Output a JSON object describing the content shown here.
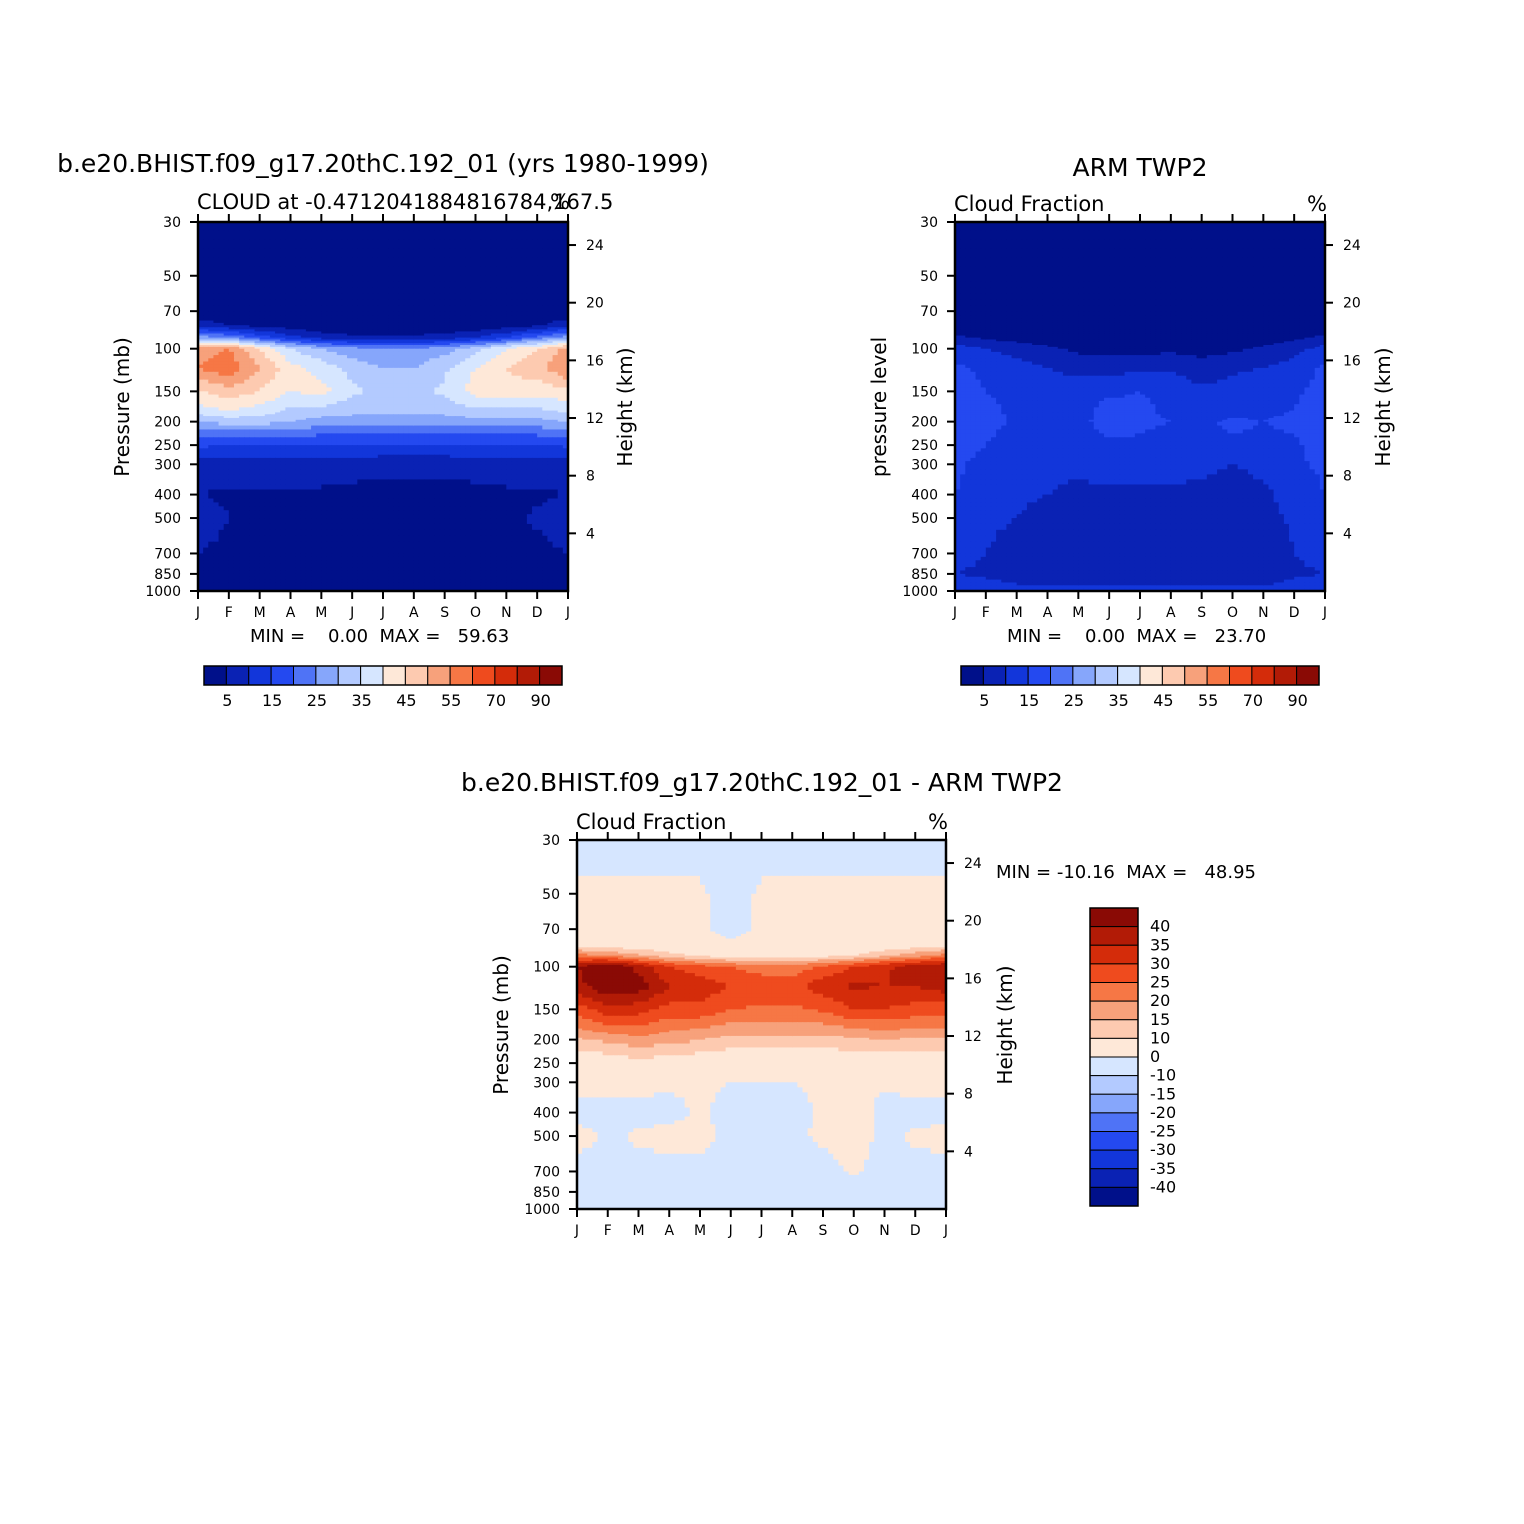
{
  "palette": {
    "abs": [
      "#00108a",
      "#0a22b4",
      "#1236da",
      "#2449f0",
      "#4f73f6",
      "#86a6fb",
      "#b3caff",
      "#d6e6ff",
      "#fee8d8",
      "#fdcab0",
      "#f7a17b",
      "#f67745",
      "#ef4b1e",
      "#d42c0a",
      "#b21b06",
      "#8a0a05"
    ],
    "diff": [
      "#00108a",
      "#0a22b4",
      "#1236da",
      "#2449f0",
      "#4f73f6",
      "#86a6fb",
      "#b3caff",
      "#d6e6ff",
      "#fee8d8",
      "#fdcab0",
      "#f7a17b",
      "#f67745",
      "#ef4b1e",
      "#d42c0a",
      "#b21b06",
      "#8a0a05"
    ]
  },
  "panels": {
    "model": {
      "title": "b.e20.BHIST.f09_g17.20thC.192_01 (yrs 1980-1999)",
      "subtitle_left": "CLOUD at -0.4712041884816784,167.5",
      "subtitle_right": "%",
      "left_axis_label": "Pressure (mb)",
      "right_axis_label": "Height (km)",
      "stats": "MIN =    0.00  MAX =   59.63"
    },
    "obs": {
      "title": "ARM TWP2",
      "subtitle_left": "Cloud Fraction",
      "subtitle_right": "%",
      "left_axis_label": "pressure level",
      "right_axis_label": "Height (km)",
      "stats": "MIN =    0.00  MAX =   23.70"
    },
    "diff": {
      "title": "b.e20.BHIST.f09_g17.20thC.192_01 - ARM TWP2",
      "subtitle_left": "Cloud Fraction",
      "subtitle_right": "%",
      "left_axis_label": "Pressure (mb)",
      "right_axis_label": "Height (km)",
      "stats": "MIN = -10.16  MAX =   48.95"
    }
  },
  "chart_data": [
    {
      "type": "heatmap",
      "title": "b.e20.BHIST.f09_g17.20thC.192_01 (yrs 1980-1999)",
      "subtitle": "CLOUD at -0.4712041884816784,167.5",
      "xlabel": "",
      "ylabel": "Pressure (mb)",
      "y2label": "Height (km)",
      "units": "%",
      "x_ticks": [
        "J",
        "F",
        "M",
        "A",
        "M",
        "J",
        "J",
        "A",
        "S",
        "O",
        "N",
        "D",
        "J"
      ],
      "pressure_ticks": [
        30,
        50,
        70,
        100,
        150,
        200,
        250,
        300,
        400,
        500,
        700,
        850,
        1000
      ],
      "height_ticks": [
        24,
        20,
        16,
        12,
        8,
        4
      ],
      "ylim": [
        30,
        1000
      ],
      "levels": [
        0,
        5,
        10,
        15,
        20,
        25,
        30,
        35,
        40,
        45,
        50,
        55,
        60,
        70,
        80,
        90
      ],
      "colorbar_labels": [
        "5",
        "15",
        "25",
        "35",
        "45",
        "55",
        "70",
        "90"
      ],
      "pressure_levels": [
        30,
        50,
        70,
        80,
        90,
        100,
        120,
        150,
        180,
        200,
        250,
        300,
        400,
        500,
        700,
        850,
        1000
      ],
      "months": [
        "J",
        "F",
        "M",
        "A",
        "M",
        "J",
        "J",
        "A",
        "S",
        "O",
        "N",
        "D",
        "J"
      ],
      "values": [
        [
          0,
          0,
          0,
          0,
          0,
          0,
          0,
          0,
          0,
          0,
          0,
          0,
          0
        ],
        [
          0,
          0,
          0,
          0,
          0,
          0,
          0,
          0,
          0,
          0,
          0,
          0,
          0
        ],
        [
          1,
          0,
          0,
          1,
          1,
          1,
          1,
          1,
          1,
          1,
          1,
          1,
          1
        ],
        [
          8,
          5,
          3,
          2,
          1,
          1,
          1,
          1,
          1,
          1,
          2,
          4,
          8
        ],
        [
          28,
          24,
          18,
          12,
          8,
          6,
          6,
          6,
          7,
          10,
          15,
          22,
          28
        ],
        [
          52,
          55,
          45,
          35,
          30,
          27,
          25,
          25,
          28,
          33,
          40,
          45,
          52
        ],
        [
          55,
          59,
          50,
          42,
          38,
          33,
          30,
          30,
          34,
          40,
          45,
          48,
          55
        ],
        [
          44,
          48,
          45,
          40,
          42,
          36,
          34,
          34,
          36,
          42,
          44,
          42,
          44
        ],
        [
          38,
          40,
          38,
          34,
          33,
          32,
          32,
          32,
          32,
          34,
          34,
          34,
          36
        ],
        [
          30,
          32,
          32,
          30,
          28,
          27,
          27,
          27,
          27,
          28,
          28,
          28,
          30
        ],
        [
          16,
          15,
          15,
          14,
          14,
          14,
          14,
          14,
          14,
          14,
          14,
          14,
          16
        ],
        [
          8,
          8,
          8,
          8,
          8,
          8,
          7,
          7,
          7,
          8,
          8,
          8,
          8
        ],
        [
          5,
          4,
          4,
          4,
          4,
          3,
          3,
          3,
          3,
          3,
          4,
          4,
          5
        ],
        [
          9,
          5,
          4,
          4,
          3,
          1,
          2,
          1,
          2,
          2,
          3,
          6,
          9
        ],
        [
          5,
          3,
          3,
          2,
          2,
          2,
          2,
          2,
          2,
          2,
          2,
          3,
          5
        ],
        [
          1,
          1,
          1,
          1,
          1,
          1,
          1,
          1,
          1,
          1,
          1,
          1,
          1
        ],
        [
          0,
          0,
          0,
          0,
          0,
          0,
          0,
          0,
          0,
          0,
          0,
          0,
          0
        ]
      ],
      "min": 0.0,
      "max": 59.63
    },
    {
      "type": "heatmap",
      "title": "ARM TWP2",
      "subtitle": "Cloud Fraction",
      "xlabel": "",
      "ylabel": "pressure level",
      "y2label": "Height (km)",
      "units": "%",
      "x_ticks": [
        "J",
        "F",
        "M",
        "A",
        "M",
        "J",
        "J",
        "A",
        "S",
        "O",
        "N",
        "D",
        "J"
      ],
      "pressure_ticks": [
        30,
        50,
        70,
        100,
        150,
        200,
        250,
        300,
        400,
        500,
        700,
        850,
        1000
      ],
      "height_ticks": [
        24,
        20,
        16,
        12,
        8,
        4
      ],
      "ylim": [
        30,
        1000
      ],
      "levels": [
        0,
        5,
        10,
        15,
        20,
        25,
        30,
        35,
        40,
        45,
        50,
        55,
        60,
        70,
        80,
        90
      ],
      "colorbar_labels": [
        "5",
        "15",
        "25",
        "35",
        "45",
        "55",
        "70",
        "90"
      ],
      "pressure_levels": [
        30,
        50,
        70,
        80,
        90,
        100,
        120,
        150,
        180,
        200,
        250,
        300,
        400,
        500,
        700,
        850,
        1000
      ],
      "months": [
        "J",
        "F",
        "M",
        "A",
        "M",
        "J",
        "J",
        "A",
        "S",
        "O",
        "N",
        "D",
        "J"
      ],
      "values": [
        [
          0,
          0,
          0,
          0,
          0,
          0,
          0,
          0,
          0,
          0,
          0,
          0,
          0
        ],
        [
          0,
          0,
          0,
          0,
          0,
          0,
          0,
          0,
          0,
          0,
          0,
          0,
          0
        ],
        [
          0,
          0,
          0,
          0,
          0,
          0,
          0,
          0,
          0,
          0,
          0,
          0,
          0
        ],
        [
          2,
          1,
          1,
          0,
          0,
          0,
          0,
          0,
          0,
          0,
          0,
          1,
          2
        ],
        [
          6,
          4,
          3,
          2,
          1,
          1,
          1,
          1,
          1,
          1,
          2,
          4,
          6
        ],
        [
          12,
          10,
          8,
          6,
          4,
          3,
          3,
          4,
          3,
          4,
          6,
          8,
          12
        ],
        [
          16,
          14,
          12,
          10,
          8,
          8,
          9,
          9,
          7,
          9,
          10,
          12,
          16
        ],
        [
          17,
          15,
          14,
          13,
          13,
          14,
          15,
          14,
          11,
          12,
          13,
          14,
          17
        ],
        [
          18,
          16,
          14,
          13,
          13,
          17,
          16,
          14,
          12,
          13,
          14,
          15,
          18
        ],
        [
          19,
          17,
          14,
          13,
          13,
          18,
          16,
          15,
          14,
          16,
          15,
          16,
          19
        ],
        [
          18,
          15,
          12,
          12,
          12,
          14,
          14,
          13,
          13,
          14,
          14,
          14,
          18
        ],
        [
          16,
          13,
          10,
          11,
          11,
          12,
          12,
          12,
          12,
          10,
          12,
          14,
          16
        ],
        [
          15,
          12,
          11,
          10,
          9,
          9,
          9,
          9,
          8,
          5,
          9,
          12,
          15
        ],
        [
          14,
          11,
          10,
          8,
          8,
          7,
          7,
          7,
          8,
          5,
          8,
          11,
          14
        ],
        [
          12,
          10,
          8,
          6,
          5,
          5,
          6,
          5,
          6,
          5,
          6,
          10,
          12
        ],
        [
          10,
          9,
          7,
          6,
          6,
          6,
          6,
          6,
          6,
          6,
          6,
          9,
          10
        ],
        [
          13,
          13,
          12,
          12,
          12,
          12,
          12,
          12,
          12,
          12,
          12,
          13,
          13
        ]
      ],
      "min": 0.0,
      "max": 23.7
    },
    {
      "type": "heatmap",
      "title": "b.e20.BHIST.f09_g17.20thC.192_01 - ARM TWP2",
      "subtitle": "Cloud Fraction",
      "xlabel": "",
      "ylabel": "Pressure (mb)",
      "y2label": "Height (km)",
      "units": "%",
      "x_ticks": [
        "J",
        "F",
        "M",
        "A",
        "M",
        "J",
        "J",
        "A",
        "S",
        "O",
        "N",
        "D",
        "J"
      ],
      "pressure_ticks": [
        30,
        50,
        70,
        100,
        150,
        200,
        250,
        300,
        400,
        500,
        700,
        850,
        1000
      ],
      "height_ticks": [
        24,
        20,
        16,
        12,
        8,
        4
      ],
      "ylim": [
        30,
        1000
      ],
      "levels": [
        -40,
        -35,
        -30,
        -25,
        -20,
        -15,
        -10,
        0,
        10,
        15,
        20,
        25,
        30,
        35,
        40
      ],
      "colorbar_labels": [
        "40",
        "35",
        "30",
        "25",
        "20",
        "15",
        "10",
        "0",
        "-10",
        "-15",
        "-20",
        "-25",
        "-30",
        "-35",
        "-40"
      ],
      "pressure_levels": [
        30,
        50,
        70,
        80,
        90,
        100,
        120,
        150,
        180,
        200,
        250,
        300,
        400,
        500,
        700,
        850,
        1000
      ],
      "months": [
        "J",
        "F",
        "M",
        "A",
        "M",
        "J",
        "J",
        "A",
        "S",
        "O",
        "N",
        "D",
        "J"
      ],
      "values": [
        [
          -3,
          -3,
          -3,
          -3,
          -3,
          -3,
          -3,
          -3,
          -3,
          -3,
          -3,
          -3,
          -3
        ],
        [
          2,
          2,
          2,
          2,
          1,
          -2,
          1,
          2,
          2,
          2,
          2,
          2,
          2
        ],
        [
          3,
          3,
          3,
          3,
          3,
          -5,
          3,
          3,
          3,
          3,
          3,
          3,
          3
        ],
        [
          6,
          5,
          4,
          4,
          3,
          2,
          3,
          3,
          3,
          3,
          4,
          5,
          6
        ],
        [
          22,
          20,
          16,
          12,
          9,
          7,
          7,
          7,
          8,
          10,
          14,
          18,
          22
        ],
        [
          40,
          45,
          38,
          30,
          27,
          25,
          22,
          22,
          26,
          30,
          34,
          38,
          40
        ],
        [
          38,
          45,
          43,
          35,
          33,
          30,
          29,
          28,
          33,
          36,
          35,
          35,
          38
        ],
        [
          27,
          33,
          32,
          28,
          29,
          25,
          24,
          24,
          26,
          30,
          30,
          28,
          27
        ],
        [
          20,
          23,
          24,
          21,
          20,
          18,
          18,
          18,
          18,
          20,
          21,
          20,
          20
        ],
        [
          14,
          16,
          18,
          17,
          15,
          13,
          13,
          13,
          13,
          14,
          15,
          14,
          14
        ],
        [
          5,
          6,
          8,
          7,
          6,
          5,
          5,
          5,
          5,
          5,
          6,
          6,
          5
        ],
        [
          2,
          2,
          2,
          1,
          1,
          0,
          0,
          0,
          1,
          1,
          1,
          2,
          2
        ],
        [
          -2,
          -2,
          -2,
          -2,
          1,
          -2,
          -2,
          -2,
          1,
          3,
          -2,
          -2,
          -2
        ],
        [
          2,
          -1,
          1,
          2,
          2,
          -2,
          -2,
          -1,
          1,
          2,
          -1,
          1,
          2
        ],
        [
          -2,
          -2,
          -2,
          -2,
          -2,
          -3,
          -3,
          -2,
          -2,
          1,
          -2,
          -2,
          -2
        ],
        [
          -3,
          -3,
          -3,
          -3,
          -3,
          -3,
          -3,
          -3,
          -3,
          -3,
          -3,
          -3,
          -3
        ],
        [
          -2,
          -2,
          -2,
          -2,
          -2,
          -2,
          -2,
          -2,
          -2,
          -2,
          -2,
          -2,
          -2
        ]
      ],
      "min": -10.16,
      "max": 48.95
    }
  ]
}
